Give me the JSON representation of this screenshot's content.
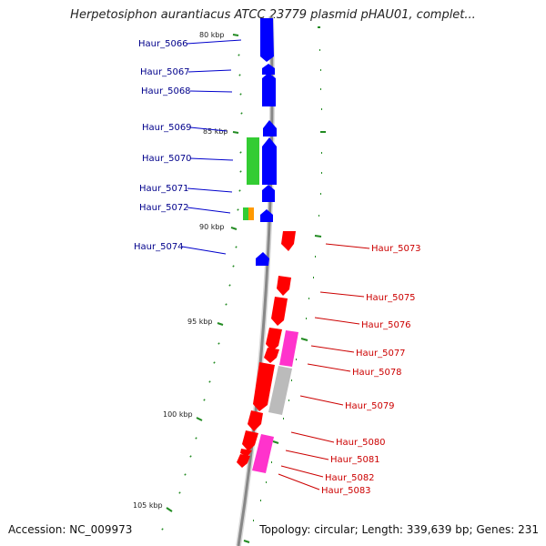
{
  "title": "Herpetosiphon aurantiacus ATCC 23779 plasmid pHAU01, complet...",
  "accession": "Accession: NC_009973",
  "topology": "Topology: circular; Length: 339,639 bp; Genes: 231",
  "colors": {
    "forward_cds": "#0000ff",
    "reverse_cds": "#ff0000",
    "rna": "#33cc33",
    "orange": "#ff9900",
    "pink": "#ff33cc",
    "grey": "#bbbbbb",
    "tick": "#228b22",
    "backbone": "#888888",
    "left_label": "#00008b",
    "right_label": "#cc0000"
  },
  "kbp_labels": [
    "80 kbp",
    "85 kbp",
    "90 kbp",
    "95 kbp",
    "100 kbp",
    "105 kbp"
  ],
  "left_genes": [
    "Haur_5066",
    "Haur_5067",
    "Haur_5068",
    "Haur_5069",
    "Haur_5070",
    "Haur_5071",
    "Haur_5072",
    "Haur_5074"
  ],
  "right_genes": [
    "Haur_5073",
    "Haur_5075",
    "Haur_5076",
    "Haur_5077",
    "Haur_5078",
    "Haur_5079",
    "Haur_5080",
    "Haur_5081",
    "Haur_5082",
    "Haur_5083"
  ]
}
